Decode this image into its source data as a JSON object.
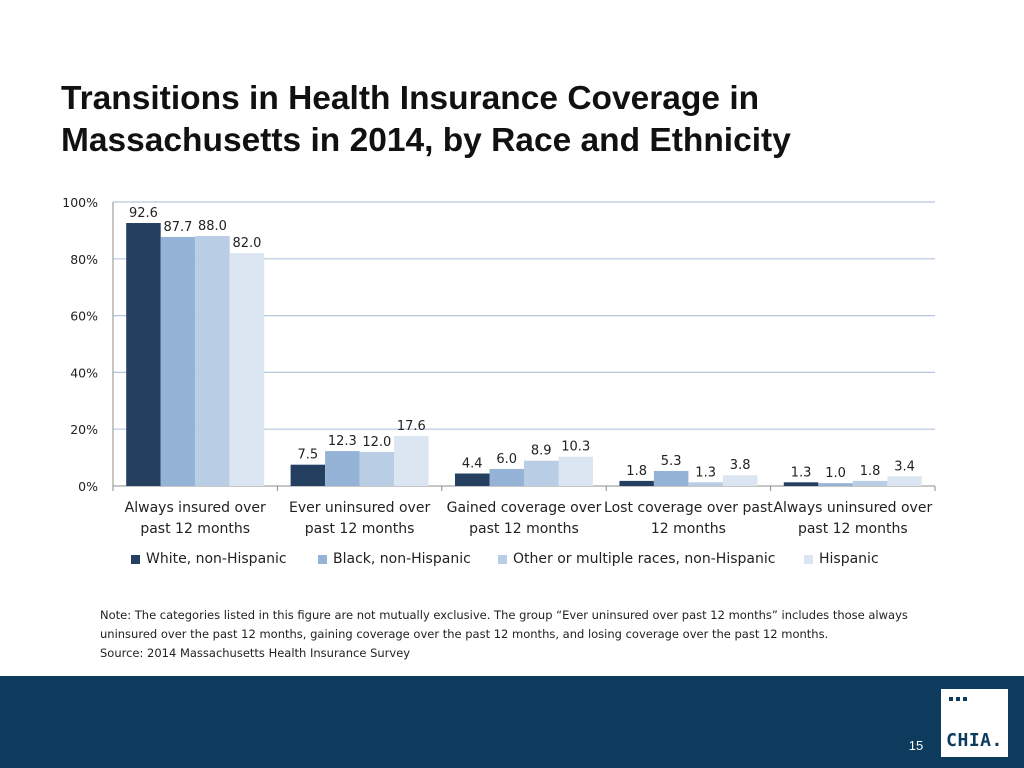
{
  "slide": {
    "title_line1": "Transitions in Health Insurance Coverage in",
    "title_line2": "Massachusetts in 2014, by Race and Ethnicity",
    "note_line1": "Note: The categories listed in this figure are not mutually exclusive. The group “Ever uninsured over past 12 months” includes those always",
    "note_line2": "uninsured over the past 12 months, gaining coverage over the past 12 months, and losing coverage over the past 12 months.",
    "source": "Source:  2014 Massachusetts Health Insurance Survey",
    "page_number": "15",
    "logo_text": "CHIA."
  },
  "chart_data": {
    "type": "bar",
    "title": "Transitions in Health Insurance Coverage in Massachusetts in 2014, by Race and Ethnicity",
    "xlabel": "",
    "ylabel": "",
    "ylim": [
      0,
      100
    ],
    "y_ticks": [
      0,
      20,
      40,
      60,
      80,
      100
    ],
    "y_tick_labels": [
      "0%",
      "20%",
      "40%",
      "60%",
      "80%",
      "100%"
    ],
    "grid": true,
    "legend_position": "bottom",
    "categories": [
      [
        "Always insured over",
        "past 12 months"
      ],
      [
        "Ever uninsured over",
        "past 12 months"
      ],
      [
        "Gained coverage over",
        "past 12 months"
      ],
      [
        "Lost coverage over past",
        "12 months"
      ],
      [
        "Always uninsured over",
        "past 12 months"
      ]
    ],
    "series": [
      {
        "name": "White, non-Hispanic",
        "color": "#243f60",
        "values": [
          92.6,
          7.5,
          4.4,
          1.8,
          1.3
        ],
        "labels": [
          "92.6",
          "7.5",
          "4.4",
          "1.8",
          "1.3"
        ]
      },
      {
        "name": "Black, non-Hispanic",
        "color": "#95b3d7",
        "values": [
          87.7,
          12.3,
          6.0,
          5.3,
          1.0
        ],
        "labels": [
          "87.7",
          "12.3",
          "6.0",
          "5.3",
          "1.0"
        ]
      },
      {
        "name": "Other or multiple races, non-Hispanic",
        "color": "#b9cde5",
        "values": [
          88.0,
          12.0,
          8.9,
          1.3,
          1.8
        ],
        "labels": [
          "88.0",
          "12.0",
          "8.9",
          "1.3",
          "1.8"
        ]
      },
      {
        "name": "Hispanic",
        "color": "#dce6f2",
        "values": [
          82.0,
          17.6,
          10.3,
          3.8,
          3.4
        ],
        "labels": [
          "82.0",
          "17.6",
          "10.3",
          "3.8",
          "3.4"
        ]
      }
    ]
  }
}
